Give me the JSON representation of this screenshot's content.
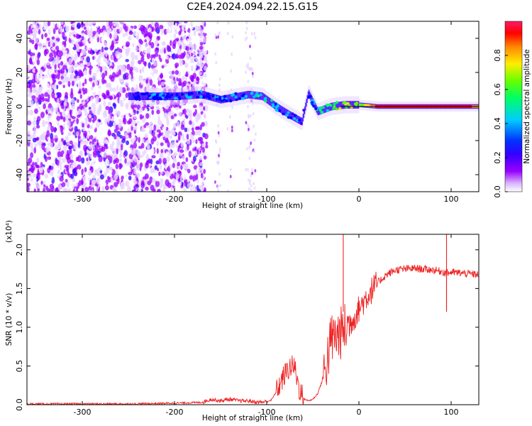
{
  "page": {
    "title": "C2E4.2024.094.22.15.G15"
  },
  "chart_data": [
    {
      "type": "heatmap",
      "subtype": "spectrogram",
      "xlabel": "Height of straight line (km)",
      "ylabel": "Frequency (Hz)",
      "xlim": [
        -360,
        130
      ],
      "ylim": [
        -50,
        50
      ],
      "xticks": [
        -300,
        -200,
        -100,
        0,
        100
      ],
      "xtick_labels": [
        "-300",
        "-200",
        "-100",
        "0",
        "100"
      ],
      "yticks": [
        -40,
        -20,
        0,
        20,
        40
      ],
      "ytick_labels": [
        "-40",
        "-20",
        "0",
        "20",
        "40"
      ],
      "grid": false,
      "colorbar": {
        "label": "Normalized spectral amplitude",
        "range": [
          0.0,
          1.0
        ],
        "ticks": [
          "0.0",
          "0.2",
          "0.4",
          "0.6",
          "0.8"
        ],
        "colormap": "rainbow",
        "colors": [
          "#ffffff",
          "#e6d2ff",
          "#9900ff",
          "#3300ff",
          "#0000ff",
          "#00ccff",
          "#00ff66",
          "#66ff00",
          "#ffee00",
          "#ff8800",
          "#ff0000",
          "#ff0066"
        ]
      },
      "ridge": [
        {
          "x": -250,
          "y": 6,
          "a": 0.3
        },
        {
          "x": -200,
          "y": 6,
          "a": 0.4
        },
        {
          "x": -170,
          "y": 7,
          "a": 0.35
        },
        {
          "x": -150,
          "y": 4,
          "a": 0.4
        },
        {
          "x": -120,
          "y": 7,
          "a": 0.45
        },
        {
          "x": -105,
          "y": 6,
          "a": 0.5
        },
        {
          "x": -90,
          "y": 0,
          "a": 0.45
        },
        {
          "x": -75,
          "y": -5,
          "a": 0.4
        },
        {
          "x": -62,
          "y": -9,
          "a": 0.35
        },
        {
          "x": -55,
          "y": 8,
          "a": 0.35
        },
        {
          "x": -45,
          "y": -3,
          "a": 0.45
        },
        {
          "x": -30,
          "y": 0,
          "a": 0.55
        },
        {
          "x": -15,
          "y": 1,
          "a": 0.65
        },
        {
          "x": 0,
          "y": 1,
          "a": 0.6
        },
        {
          "x": 20,
          "y": 0,
          "a": 0.9
        },
        {
          "x": 60,
          "y": 0,
          "a": 0.92
        },
        {
          "x": 100,
          "y": 0,
          "a": 0.9
        },
        {
          "x": 130,
          "y": 0,
          "a": 0.85
        }
      ]
    },
    {
      "type": "line",
      "xlabel": "Height of straight line (km)",
      "ylabel": "SNR (10 * v/v)",
      "yscale_label": "(x10⁴)",
      "xlim": [
        -360,
        130
      ],
      "ylim": [
        0.0,
        2.2
      ],
      "xticks": [
        -300,
        -200,
        -100,
        0,
        100
      ],
      "xtick_labels": [
        "-300",
        "-200",
        "-100",
        "0",
        "100"
      ],
      "yticks": [
        0.0,
        0.5,
        1.0,
        1.5,
        2.0
      ],
      "ytick_labels": [
        "0.0",
        "0.5",
        "1.0",
        "1.5",
        "2.0"
      ],
      "grid": false,
      "series": [
        {
          "color": "#ee2222",
          "x": [
            -360,
            -300,
            -250,
            -200,
            -170,
            -160,
            -150,
            -140,
            -130,
            -120,
            -110,
            -100,
            -95,
            -90,
            -85,
            -80,
            -75,
            -70,
            -65,
            -60,
            -55,
            -50,
            -45,
            -40,
            -35,
            -30,
            -25,
            -20,
            -15,
            -10,
            -5,
            0,
            10,
            20,
            30,
            40,
            50,
            60,
            70,
            80,
            90,
            95,
            100,
            110,
            120,
            130
          ],
          "y": [
            0.01,
            0.01,
            0.01,
            0.02,
            0.03,
            0.07,
            0.05,
            0.07,
            0.05,
            0.05,
            0.03,
            0.04,
            0.06,
            0.16,
            0.28,
            0.4,
            0.48,
            0.5,
            0.22,
            0.08,
            0.05,
            0.07,
            0.14,
            0.3,
            0.55,
            0.85,
            0.88,
            0.92,
            0.98,
            1.04,
            1.13,
            1.24,
            1.42,
            1.57,
            1.68,
            1.74,
            1.75,
            1.76,
            1.75,
            1.74,
            1.72,
            1.7,
            1.71,
            1.7,
            1.69,
            1.68
          ]
        }
      ],
      "annotations": [
        {
          "x": -17,
          "y": 2.2,
          "note": "spike"
        },
        {
          "x": 95,
          "y": 1.22,
          "note": "dip"
        },
        {
          "x": 95,
          "y": 2.2,
          "note": "spike"
        }
      ]
    }
  ]
}
